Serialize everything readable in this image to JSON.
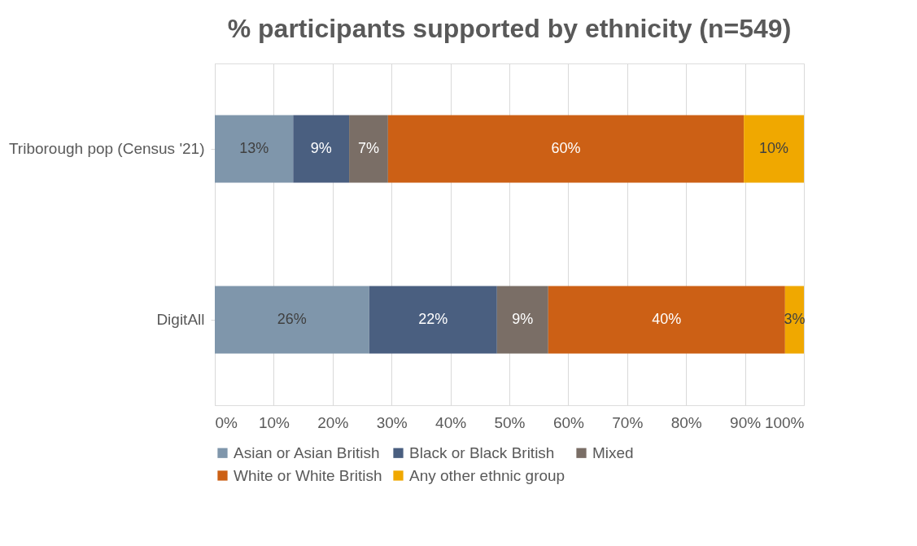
{
  "chart_data": {
    "type": "bar",
    "orientation": "horizontal",
    "stacked": true,
    "title": "% participants supported by ethnicity (n=549)",
    "categories": [
      "Triborough pop (Census '21)",
      "DigitAll"
    ],
    "series": [
      {
        "name": "Asian or Asian British",
        "color": "#7f96ab",
        "values": [
          13.3,
          26.2
        ],
        "value_labels": [
          "13%",
          "26%"
        ]
      },
      {
        "name": "Black or Black British",
        "color": "#4a5f80",
        "values": [
          9.5,
          21.7
        ],
        "value_labels": [
          "9%",
          "22%"
        ]
      },
      {
        "name": "Mixed",
        "color": "#7a6e66",
        "values": [
          6.6,
          8.7
        ],
        "value_labels": [
          "7%",
          "9%"
        ]
      },
      {
        "name": "White or White British",
        "color": "#cc6015",
        "values": [
          60.4,
          40.2
        ],
        "value_labels": [
          "60%",
          "40%"
        ]
      },
      {
        "name": "Any other ethnic group",
        "color": "#f0a800",
        "values": [
          10.2,
          3.2
        ],
        "value_labels": [
          "10%",
          "3%"
        ]
      }
    ],
    "xlim": [
      0,
      100
    ],
    "xticks": [
      {
        "value": 0,
        "label": "0%"
      },
      {
        "value": 10,
        "label": "10%"
      },
      {
        "value": 20,
        "label": "20%"
      },
      {
        "value": 30,
        "label": "30%"
      },
      {
        "value": 40,
        "label": "40%"
      },
      {
        "value": 50,
        "label": "50%"
      },
      {
        "value": 60,
        "label": "60%"
      },
      {
        "value": 70,
        "label": "70%"
      },
      {
        "value": 80,
        "label": "80%"
      },
      {
        "value": 90,
        "label": "90%"
      },
      {
        "value": 100,
        "label": "100%"
      }
    ],
    "grid": "x",
    "legend": "bottom"
  }
}
